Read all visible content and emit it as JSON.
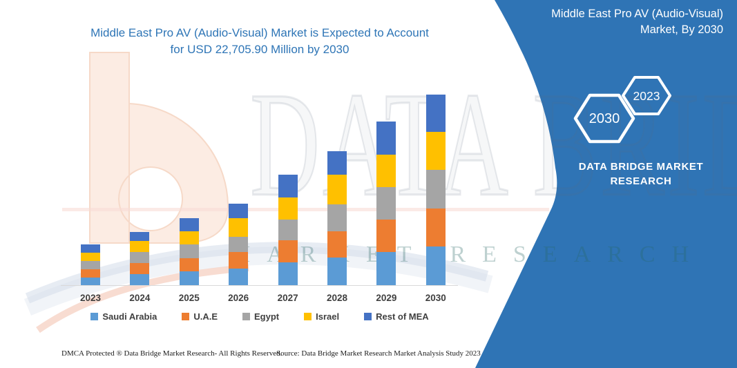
{
  "chart": {
    "title_lines": [
      "Middle East Pro AV (Audio-Visual) Market is Expected to Account",
      "for USD 22,705.90 Million by 2030"
    ],
    "title_color": "#2e75b6"
  },
  "banner": {
    "color": "#2f74b5",
    "title_lines": [
      "Middle East Pro AV (Audio-Visual)",
      "Market, By 2030"
    ],
    "hexagons": [
      {
        "label": "2030"
      },
      {
        "label": "2023"
      }
    ],
    "brand_lines": [
      "DATA BRIDGE MARKET",
      "RESEARCH"
    ]
  },
  "watermark": {
    "brand_text": "DATA BRIDGE",
    "tagline_text": "MARKET RESEARCH"
  },
  "footer": {
    "dmca": "DMCA Protected ® Data Bridge Market Research-  All Rights Reserved.",
    "source": "Source: Data Bridge Market Research  Market Analysis Study 2023"
  },
  "chart_data": {
    "type": "bar",
    "stacked": true,
    "title": "Middle East Pro AV (Audio-Visual) Market is Expected to Account for USD 22,705.90 Million by 2030",
    "unit": "USD Million",
    "categories": [
      "2023",
      "2024",
      "2025",
      "2026",
      "2027",
      "2028",
      "2029",
      "2030"
    ],
    "series": [
      {
        "name": "Saudi Arabia",
        "color": "#5b9bd5",
        "values": [
          905,
          1290,
          1640,
          1995,
          2685,
          3285,
          3915,
          4575
        ]
      },
      {
        "name": "U.A.E",
        "color": "#ed7d31",
        "values": [
          1010,
          1315,
          1585,
          1970,
          2650,
          3145,
          3885,
          4515
        ]
      },
      {
        "name": "Egypt",
        "color": "#a5a5a5",
        "values": [
          985,
          1315,
          1620,
          1780,
          2465,
          3200,
          3835,
          4655
        ]
      },
      {
        "name": "Israel",
        "color": "#ffc000",
        "values": [
          960,
          1340,
          1585,
          2190,
          2650,
          3505,
          3885,
          4460
        ]
      },
      {
        "name": "Rest of MEA",
        "color": "#4472c4",
        "values": [
          1020,
          1090,
          1560,
          1780,
          2685,
          2790,
          3915,
          4500.9
        ]
      }
    ],
    "totals": [
      4880,
      6350,
      7990,
      9715,
      13135,
      15925,
      19435,
      22705.9
    ],
    "highlighted_total": {
      "category": "2030",
      "value": 22705.9
    },
    "value_axis_visible": false,
    "gridlines": false,
    "legend_position": "bottom"
  }
}
